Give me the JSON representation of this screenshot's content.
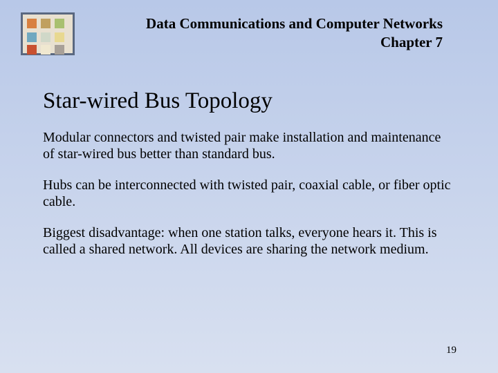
{
  "header": {
    "course_title": "Data Communications and Computer Networks",
    "chapter": "Chapter 7"
  },
  "slide": {
    "title": "Star-wired Bus Topology",
    "paragraphs": [
      "Modular connectors and twisted pair make installation and maintenance of star-wired bus better than standard bus.",
      "Hubs can be interconnected with twisted pair, coaxial cable, or fiber optic cable.",
      "Biggest disadvantage: when one station talks, everyone hears it.  This is called a shared network.  All devices are sharing the network medium."
    ]
  },
  "page_number": "19",
  "colors": {
    "bg_top": "#b8c8e8",
    "bg_bottom": "#d8e0f0",
    "text": "#000000"
  },
  "typography": {
    "family": "Times New Roman",
    "title_size_pt": 33,
    "body_size_pt": 20,
    "header_size_pt": 21
  }
}
